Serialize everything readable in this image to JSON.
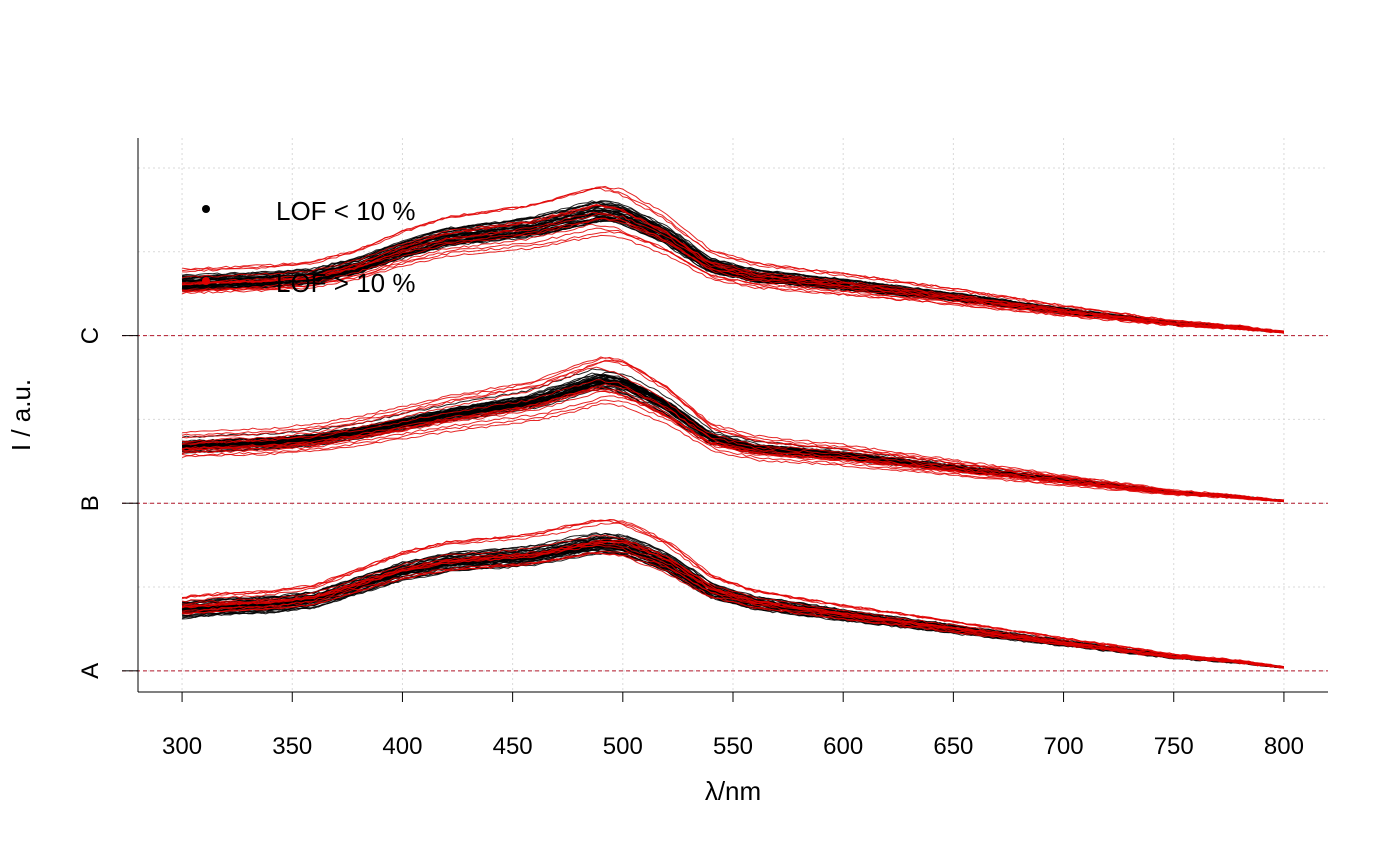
{
  "chart_data": {
    "type": "line",
    "title": "",
    "xlabel": "λ/nm",
    "ylabel": "I / a.u.",
    "xlim": [
      280,
      820
    ],
    "xticks": [
      300,
      350,
      400,
      450,
      500,
      550,
      600,
      650,
      700,
      750,
      800
    ],
    "ylim": [
      -0.12,
      3.02
    ],
    "grid": true,
    "groups": [
      {
        "label": "A",
        "offset": 0.0
      },
      {
        "label": "B",
        "offset": 0.95
      },
      {
        "label": "C",
        "offset": 1.9
      }
    ],
    "y_tick_labels": [
      "A",
      "B",
      "C"
    ],
    "mean_profile": {
      "x": [
        300,
        320,
        340,
        360,
        380,
        400,
        420,
        440,
        460,
        480,
        490,
        500,
        520,
        540,
        560,
        600,
        650,
        700,
        750,
        800
      ],
      "A": [
        0.35,
        0.37,
        0.38,
        0.41,
        0.49,
        0.57,
        0.62,
        0.64,
        0.66,
        0.71,
        0.73,
        0.72,
        0.62,
        0.46,
        0.39,
        0.32,
        0.24,
        0.16,
        0.08,
        0.03
      ],
      "B": [
        0.32,
        0.33,
        0.34,
        0.36,
        0.4,
        0.45,
        0.5,
        0.54,
        0.58,
        0.66,
        0.7,
        0.68,
        0.55,
        0.37,
        0.31,
        0.27,
        0.2,
        0.13,
        0.06,
        0.02
      ],
      "C": [
        0.3,
        0.31,
        0.32,
        0.34,
        0.4,
        0.49,
        0.56,
        0.59,
        0.62,
        0.68,
        0.71,
        0.69,
        0.57,
        0.4,
        0.34,
        0.29,
        0.22,
        0.14,
        0.07,
        0.03
      ]
    },
    "series": [
      {
        "name": "LOF < 10 %",
        "color": "#000000",
        "count": 45,
        "amplitude_spread": 0.12
      },
      {
        "name": "LOF > 10 %",
        "color": "#e00000",
        "count": 14,
        "amplitude_spread": 0.42
      }
    ],
    "reference_lines": {
      "color": "#b2182b",
      "style": "dashed",
      "at": "group baselines"
    },
    "legend": {
      "position": "top-left",
      "items": [
        {
          "label": "LOF < 10 %",
          "color": "#000000"
        },
        {
          "label": "LOF > 10 %",
          "color": "#e00000"
        }
      ]
    }
  }
}
